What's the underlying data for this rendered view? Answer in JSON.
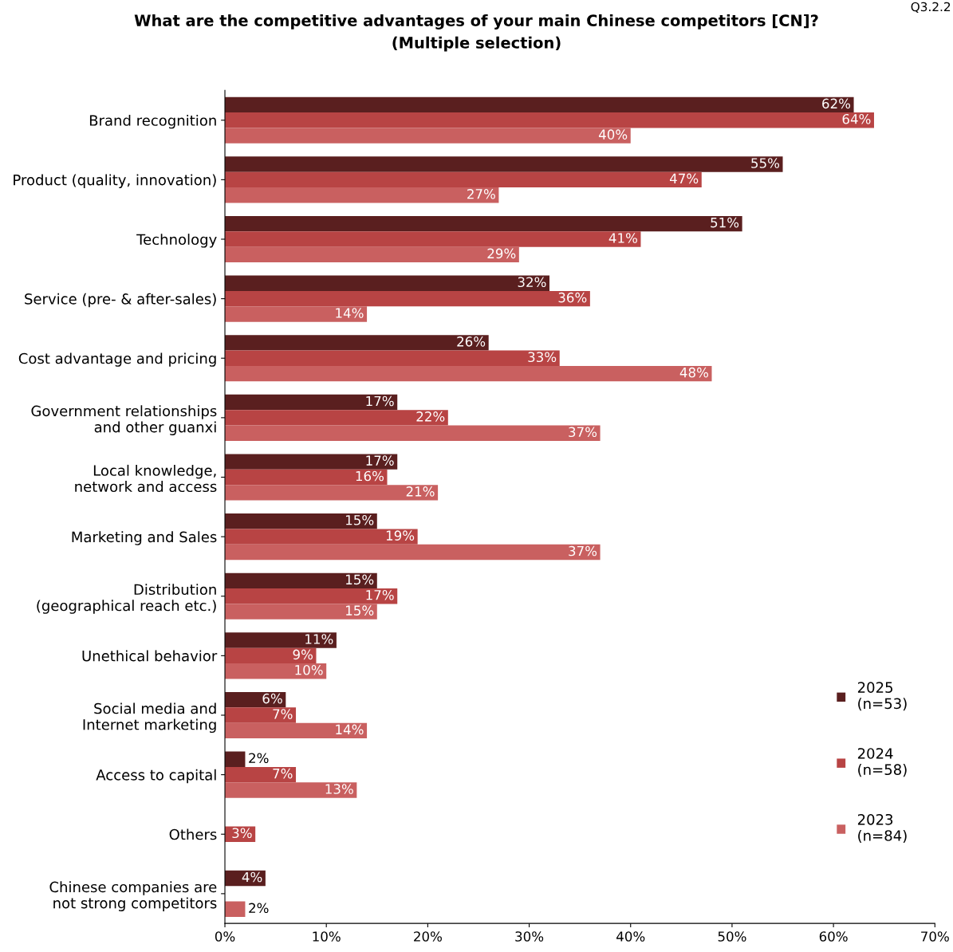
{
  "chart_data": {
    "type": "bar",
    "orientation": "horizontal",
    "title": "What are the competitive advantages of your main Chinese competitors [CN]?\n(Multiple selection)",
    "annotations": [
      "Q3.2.2"
    ],
    "categories": [
      "Brand recognition",
      "Product (quality, innovation)",
      "Technology",
      "Service (pre- & after-sales)",
      "Cost advantage and pricing",
      "Government relationships\nand other guanxi",
      "Local knowledge,\nnetwork and access",
      "Marketing and Sales",
      "Distribution\n(geographical reach etc.)",
      "Unethical behavior",
      "Social media and\nInternet marketing",
      "Access to capital",
      "Others",
      "Chinese companies are\nnot strong competitors"
    ],
    "series": [
      {
        "name": "2025\n(n=53)",
        "color": "#5a1f1f",
        "values": [
          62,
          55,
          51,
          32,
          26,
          17,
          17,
          15,
          15,
          11,
          6,
          2,
          null,
          4
        ],
        "value_labels": [
          "62%",
          "55%",
          "51%",
          "32%",
          "26%",
          "17%",
          "17%",
          "15%",
          "15%",
          "11%",
          "6%",
          "2%",
          null,
          "4%"
        ]
      },
      {
        "name": "2024\n(n=58)",
        "color": "#b84444",
        "values": [
          64,
          47,
          41,
          36,
          33,
          22,
          16,
          19,
          17,
          9,
          7,
          7,
          3,
          null
        ],
        "value_labels": [
          "64%",
          "47%",
          "41%",
          "36%",
          "33%",
          "22%",
          "16%",
          "19%",
          "17%",
          "9%",
          "7%",
          "7%",
          "3%",
          null
        ]
      },
      {
        "name": "2023\n(n=84)",
        "color": "#c96060",
        "values": [
          40,
          27,
          29,
          14,
          48,
          37,
          21,
          37,
          15,
          10,
          14,
          13,
          null,
          2
        ],
        "value_labels": [
          "40%",
          "27%",
          "29%",
          "14%",
          "48%",
          "37%",
          "21%",
          "37%",
          "15%",
          "10%",
          "14%",
          "13%",
          null,
          "2%"
        ]
      }
    ],
    "xlim": [
      0,
      70
    ],
    "xticks": [
      {
        "value": 0,
        "label": "0%"
      },
      {
        "value": 10,
        "label": "10%"
      },
      {
        "value": 20,
        "label": "20%"
      },
      {
        "value": 30,
        "label": "30%"
      },
      {
        "value": 40,
        "label": "40%"
      },
      {
        "value": 50,
        "label": "50%"
      },
      {
        "value": 60,
        "label": "60%"
      },
      {
        "value": 70,
        "label": "70%"
      }
    ],
    "legend": "right",
    "grid": false
  }
}
